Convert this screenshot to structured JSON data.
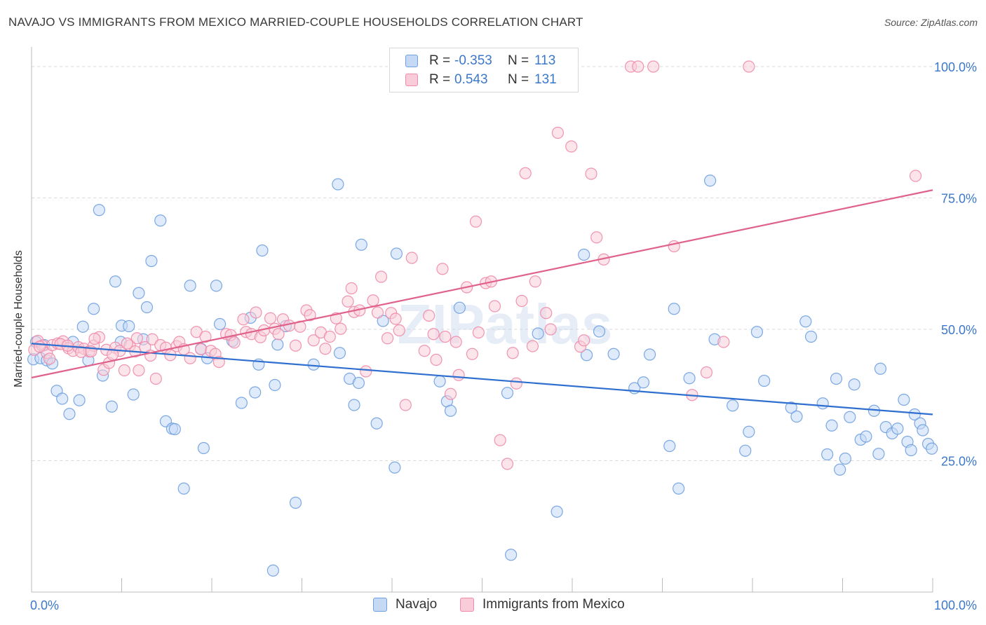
{
  "title": "NAVAJO VS IMMIGRANTS FROM MEXICO MARRIED-COUPLE HOUSEHOLDS CORRELATION CHART",
  "source": "Source: ZipAtlas.com",
  "watermark": "ZIPatlas",
  "colors": {
    "navajo": "#6fa0e0",
    "navajo_fill": "#c5d9f5",
    "navajo_line": "#2f6fcf",
    "mexico": "#f08aa8",
    "mexico_fill": "#f8cdd9",
    "mexico_line": "#e0628c",
    "axis_text": "#3b78c9",
    "grid": "#d9d9d9"
  },
  "legend_top": {
    "rows": [
      {
        "r_label": "R =",
        "r_value": "-0.353",
        "n_label": "N =",
        "n_value": "113"
      },
      {
        "r_label": "R =",
        "r_value": "0.543",
        "n_label": "N =",
        "n_value": "131"
      }
    ]
  },
  "legend_bottom": {
    "items": [
      "Navajo",
      "Immigrants from Mexico"
    ]
  },
  "chart_data": {
    "type": "scatter",
    "title": "NAVAJO VS IMMIGRANTS FROM MEXICO MARRIED-COUPLE HOUSEHOLDS CORRELATION CHART",
    "xlabel": "",
    "ylabel": "Married-couple Households",
    "xlim": [
      0,
      100
    ],
    "ylim": [
      0,
      102
    ],
    "x_tick_labels": [
      "0.0%",
      "100.0%"
    ],
    "y_ticks": [
      25,
      50,
      75,
      100
    ],
    "y_tick_labels": [
      "25.0%",
      "50.0%",
      "75.0%",
      "100.0%"
    ],
    "grid": true,
    "legend_placement": "top-center",
    "series": [
      {
        "name": "Navajo",
        "trend": [
          [
            0,
            47.3
          ],
          [
            100,
            33.8
          ]
        ],
        "points": [
          [
            0.2,
            44.3
          ],
          [
            0.5,
            47.6
          ],
          [
            1.0,
            44.5
          ],
          [
            1.7,
            44.1
          ],
          [
            2.3,
            43.5
          ],
          [
            1.4,
            47.0
          ],
          [
            2.8,
            38.3
          ],
          [
            3.4,
            36.8
          ],
          [
            4.2,
            33.9
          ],
          [
            4.6,
            47.6
          ],
          [
            5.3,
            36.5
          ],
          [
            5.7,
            50.5
          ],
          [
            6.3,
            44.1
          ],
          [
            6.9,
            53.9
          ],
          [
            7.5,
            72.7
          ],
          [
            7.9,
            41.2
          ],
          [
            8.9,
            35.3
          ],
          [
            9.3,
            59.1
          ],
          [
            10.0,
            50.7
          ],
          [
            9.9,
            47.6
          ],
          [
            10.8,
            50.6
          ],
          [
            11.3,
            37.6
          ],
          [
            11.9,
            56.9
          ],
          [
            12.4,
            48.1
          ],
          [
            12.8,
            54.2
          ],
          [
            13.3,
            63.0
          ],
          [
            14.3,
            70.7
          ],
          [
            14.9,
            32.5
          ],
          [
            15.6,
            31.1
          ],
          [
            15.9,
            31.0
          ],
          [
            16.9,
            19.7
          ],
          [
            17.6,
            58.3
          ],
          [
            18.8,
            46.3
          ],
          [
            19.1,
            27.4
          ],
          [
            19.5,
            44.5
          ],
          [
            20.5,
            58.3
          ],
          [
            20.9,
            51.0
          ],
          [
            22.3,
            47.8
          ],
          [
            23.3,
            36.0
          ],
          [
            24.3,
            52.2
          ],
          [
            24.8,
            38.0
          ],
          [
            25.2,
            43.3
          ],
          [
            25.6,
            65.0
          ],
          [
            27.0,
            39.4
          ],
          [
            27.3,
            47.1
          ],
          [
            28.2,
            50.6
          ],
          [
            29.3,
            17.0
          ],
          [
            31.3,
            43.3
          ],
          [
            34.0,
            77.6
          ],
          [
            34.2,
            45.5
          ],
          [
            35.3,
            40.6
          ],
          [
            35.8,
            35.6
          ],
          [
            36.3,
            39.8
          ],
          [
            36.6,
            66.1
          ],
          [
            38.3,
            32.1
          ],
          [
            39.0,
            51.6
          ],
          [
            40.3,
            23.7
          ],
          [
            40.5,
            64.4
          ],
          [
            45.3,
            40.1
          ],
          [
            46.1,
            36.3
          ],
          [
            46.5,
            34.5
          ],
          [
            47.5,
            54.1
          ],
          [
            52.8,
            37.9
          ],
          [
            53.2,
            7.1
          ],
          [
            56.2,
            49.2
          ],
          [
            58.3,
            15.3
          ],
          [
            61.3,
            64.2
          ],
          [
            61.6,
            45.1
          ],
          [
            63.0,
            49.6
          ],
          [
            64.6,
            45.3
          ],
          [
            66.9,
            38.8
          ],
          [
            67.9,
            39.9
          ],
          [
            68.6,
            45.2
          ],
          [
            70.8,
            27.8
          ],
          [
            71.3,
            53.9
          ],
          [
            71.8,
            19.7
          ],
          [
            73.0,
            40.7
          ],
          [
            75.3,
            78.3
          ],
          [
            75.8,
            48.1
          ],
          [
            77.8,
            35.5
          ],
          [
            79.2,
            26.9
          ],
          [
            79.6,
            30.5
          ],
          [
            80.5,
            49.5
          ],
          [
            81.3,
            40.2
          ],
          [
            84.3,
            35.1
          ],
          [
            84.9,
            33.4
          ],
          [
            85.9,
            51.5
          ],
          [
            86.5,
            48.6
          ],
          [
            87.8,
            35.9
          ],
          [
            88.3,
            26.2
          ],
          [
            88.8,
            31.7
          ],
          [
            89.3,
            40.6
          ],
          [
            89.7,
            23.3
          ],
          [
            90.3,
            25.4
          ],
          [
            90.8,
            33.3
          ],
          [
            91.3,
            39.5
          ],
          [
            92.0,
            29.0
          ],
          [
            92.6,
            29.6
          ],
          [
            93.5,
            34.5
          ],
          [
            94.0,
            26.3
          ],
          [
            94.2,
            42.5
          ],
          [
            94.8,
            31.4
          ],
          [
            95.5,
            30.2
          ],
          [
            96.1,
            31.1
          ],
          [
            96.8,
            36.6
          ],
          [
            97.2,
            28.6
          ],
          [
            97.6,
            27.0
          ],
          [
            98.0,
            33.8
          ],
          [
            98.6,
            32.1
          ],
          [
            98.9,
            30.8
          ],
          [
            99.5,
            28.2
          ],
          [
            99.9,
            27.3
          ],
          [
            26.8,
            4.1
          ]
        ]
      },
      {
        "name": "Immigrants from Mexico",
        "trend": [
          [
            0,
            40.8
          ],
          [
            100,
            76.5
          ]
        ],
        "points": [
          [
            0.3,
            46.1
          ],
          [
            0.7,
            47.8
          ],
          [
            1.2,
            46.9
          ],
          [
            1.7,
            45.5
          ],
          [
            2.3,
            47.0
          ],
          [
            2.9,
            47.3
          ],
          [
            3.5,
            47.7
          ],
          [
            4.1,
            46.4
          ],
          [
            4.6,
            45.9
          ],
          [
            5.2,
            46.6
          ],
          [
            5.8,
            46.3
          ],
          [
            6.4,
            45.8
          ],
          [
            6.9,
            46.9
          ],
          [
            7.5,
            48.5
          ],
          [
            8.0,
            42.3
          ],
          [
            8.3,
            46.1
          ],
          [
            8.6,
            43.6
          ],
          [
            9.3,
            46.5
          ],
          [
            9.8,
            45.9
          ],
          [
            10.3,
            42.2
          ],
          [
            10.9,
            46.9
          ],
          [
            11.5,
            45.8
          ],
          [
            11.9,
            42.2
          ],
          [
            12.6,
            46.6
          ],
          [
            13.2,
            45.0
          ],
          [
            13.4,
            48.1
          ],
          [
            13.8,
            40.6
          ],
          [
            14.3,
            47.0
          ],
          [
            14.9,
            46.5
          ],
          [
            15.4,
            45.1
          ],
          [
            16.1,
            46.8
          ],
          [
            16.4,
            47.6
          ],
          [
            16.9,
            46.2
          ],
          [
            17.6,
            44.5
          ],
          [
            18.3,
            49.5
          ],
          [
            18.8,
            46.2
          ],
          [
            19.3,
            48.6
          ],
          [
            19.9,
            45.9
          ],
          [
            20.4,
            45.3
          ],
          [
            20.8,
            43.8
          ],
          [
            21.6,
            49.1
          ],
          [
            22.1,
            48.9
          ],
          [
            22.5,
            47.5
          ],
          [
            23.5,
            51.9
          ],
          [
            23.8,
            49.5
          ],
          [
            24.4,
            49.1
          ],
          [
            24.9,
            53.2
          ],
          [
            25.4,
            48.5
          ],
          [
            25.8,
            49.8
          ],
          [
            26.5,
            52.1
          ],
          [
            27.0,
            50.1
          ],
          [
            27.4,
            49.1
          ],
          [
            27.9,
            51.9
          ],
          [
            28.6,
            50.7
          ],
          [
            29.3,
            46.9
          ],
          [
            29.8,
            50.5
          ],
          [
            30.5,
            53.6
          ],
          [
            30.9,
            52.7
          ],
          [
            31.3,
            47.9
          ],
          [
            32.1,
            49.4
          ],
          [
            32.6,
            46.3
          ],
          [
            33.1,
            48.6
          ],
          [
            33.8,
            52.1
          ],
          [
            34.3,
            50.1
          ],
          [
            35.1,
            55.3
          ],
          [
            35.5,
            57.8
          ],
          [
            35.8,
            53.3
          ],
          [
            36.4,
            53.6
          ],
          [
            37.1,
            42.0
          ],
          [
            37.9,
            55.5
          ],
          [
            38.4,
            53.2
          ],
          [
            38.8,
            60.0
          ],
          [
            39.5,
            48.3
          ],
          [
            39.9,
            53.1
          ],
          [
            40.4,
            52.0
          ],
          [
            40.8,
            49.8
          ],
          [
            41.5,
            35.6
          ],
          [
            42.2,
            63.6
          ],
          [
            43.6,
            45.9
          ],
          [
            44.1,
            52.6
          ],
          [
            44.6,
            49.1
          ],
          [
            44.9,
            44.2
          ],
          [
            45.6,
            61.5
          ],
          [
            45.9,
            48.6
          ],
          [
            46.5,
            37.7
          ],
          [
            47.1,
            47.6
          ],
          [
            47.4,
            41.3
          ],
          [
            48.3,
            58.0
          ],
          [
            48.9,
            45.3
          ],
          [
            49.3,
            70.5
          ],
          [
            49.6,
            49.4
          ],
          [
            50.4,
            58.8
          ],
          [
            51.0,
            59.1
          ],
          [
            51.4,
            54.4
          ],
          [
            52.0,
            28.9
          ],
          [
            52.8,
            24.4
          ],
          [
            53.4,
            45.5
          ],
          [
            53.8,
            39.7
          ],
          [
            54.4,
            55.4
          ],
          [
            54.8,
            79.7
          ],
          [
            55.6,
            46.8
          ],
          [
            55.9,
            59.1
          ],
          [
            57.1,
            53.1
          ],
          [
            57.6,
            50.0
          ],
          [
            58.4,
            87.4
          ],
          [
            59.9,
            84.8
          ],
          [
            60.9,
            46.7
          ],
          [
            61.3,
            47.9
          ],
          [
            62.1,
            79.6
          ],
          [
            62.7,
            67.5
          ],
          [
            63.5,
            63.3
          ],
          [
            66.5,
            100
          ],
          [
            69.0,
            100
          ],
          [
            71.3,
            65.8
          ],
          [
            73.3,
            37.5
          ],
          [
            74.9,
            41.8
          ],
          [
            76.8,
            47.6
          ],
          [
            79.6,
            100
          ],
          [
            98.1,
            79.2
          ],
          [
            53.8,
            100
          ],
          [
            67.3,
            100
          ],
          [
            0.9,
            46.7
          ],
          [
            2.0,
            44.4
          ],
          [
            3.2,
            47.2
          ],
          [
            4.0,
            46.9
          ],
          [
            5.5,
            45.7
          ],
          [
            6.6,
            45.8
          ],
          [
            7.0,
            48.2
          ],
          [
            9.0,
            45.2
          ],
          [
            10.6,
            47.3
          ],
          [
            11.7,
            48.3
          ]
        ]
      }
    ]
  }
}
